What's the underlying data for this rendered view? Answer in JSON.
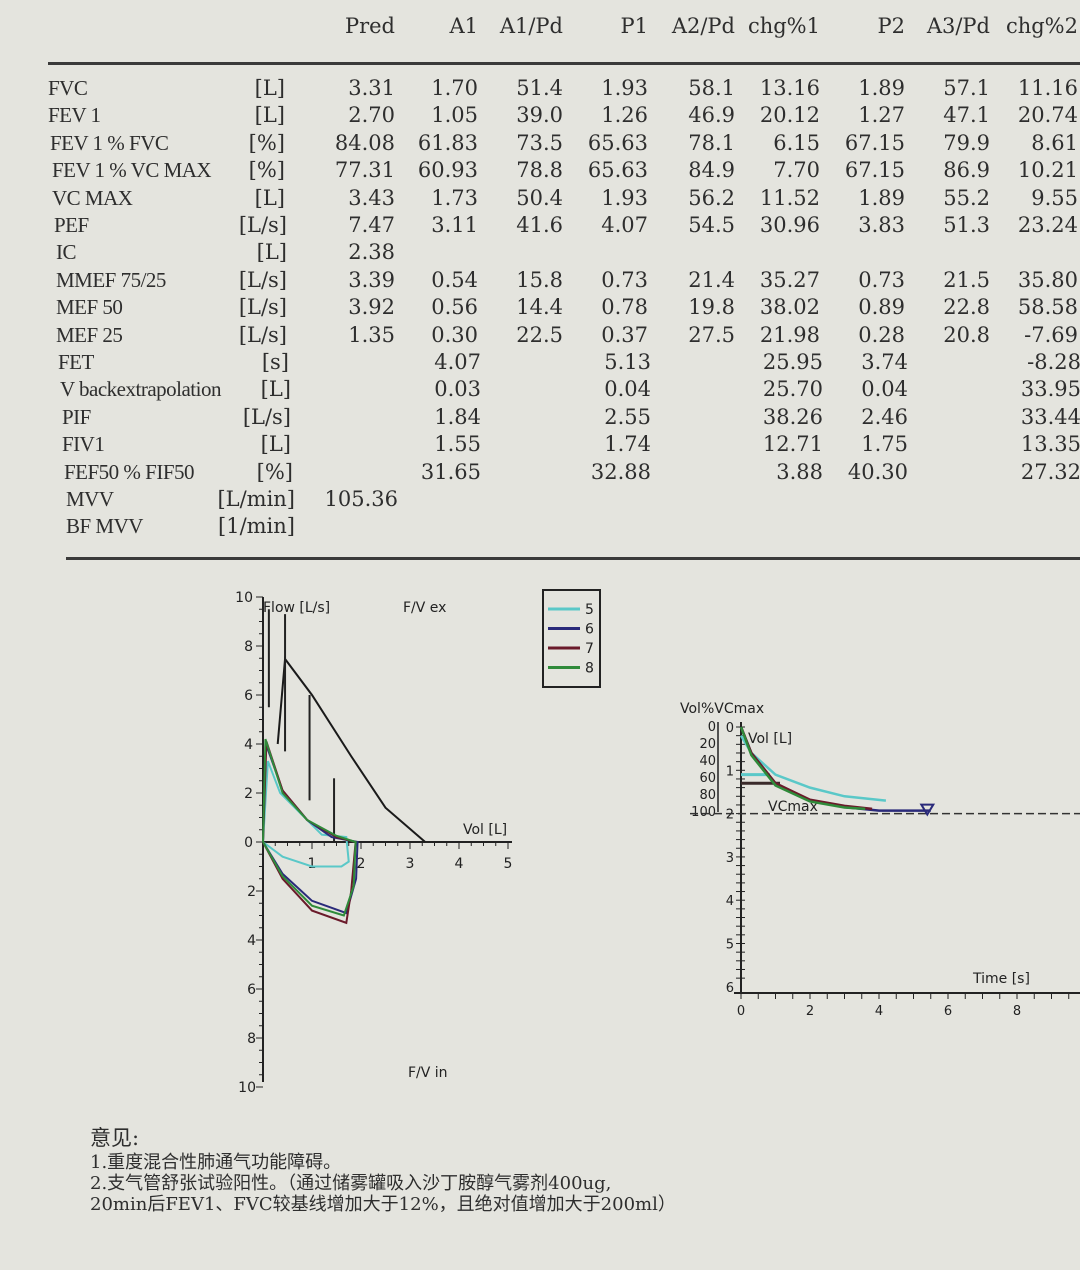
{
  "table": {
    "columns": [
      "Pred",
      "A1",
      "A1/Pd",
      "P1",
      "A2/Pd",
      "chg%1",
      "P2",
      "A3/Pd",
      "chg%2"
    ],
    "rows": [
      {
        "name": "FVC",
        "unit": "[L]",
        "values": [
          "3.31",
          "1.70",
          "51.4",
          "1.93",
          "58.1",
          "13.16",
          "1.89",
          "57.1",
          "11.16"
        ]
      },
      {
        "name": "FEV 1",
        "unit": "[L]",
        "values": [
          "2.70",
          "1.05",
          "39.0",
          "1.26",
          "46.9",
          "20.12",
          "1.27",
          "47.1",
          "20.74"
        ]
      },
      {
        "name": "FEV 1 % FVC",
        "unit": "[%]",
        "values": [
          "84.08",
          "61.83",
          "73.5",
          "65.63",
          "78.1",
          "6.15",
          "67.15",
          "79.9",
          "8.61"
        ]
      },
      {
        "name": "FEV 1 % VC MAX",
        "unit": "[%]",
        "values": [
          "77.31",
          "60.93",
          "78.8",
          "65.63",
          "84.9",
          "7.70",
          "67.15",
          "86.9",
          "10.21"
        ]
      },
      {
        "name": "VC MAX",
        "unit": "[L]",
        "values": [
          "3.43",
          "1.73",
          "50.4",
          "1.93",
          "56.2",
          "11.52",
          "1.89",
          "55.2",
          "9.55"
        ]
      },
      {
        "name": "PEF",
        "unit": "[L/s]",
        "values": [
          "7.47",
          "3.11",
          "41.6",
          "4.07",
          "54.5",
          "30.96",
          "3.83",
          "51.3",
          "23.24"
        ]
      },
      {
        "name": "IC",
        "unit": "[L]",
        "values": [
          "2.38",
          "",
          "",
          "",
          "",
          "",
          "",
          "",
          ""
        ]
      },
      {
        "name": "MMEF 75/25",
        "unit": "[L/s]",
        "values": [
          "3.39",
          "0.54",
          "15.8",
          "0.73",
          "21.4",
          "35.27",
          "0.73",
          "21.5",
          "35.80"
        ]
      },
      {
        "name": "MEF 50",
        "unit": "[L/s]",
        "values": [
          "3.92",
          "0.56",
          "14.4",
          "0.78",
          "19.8",
          "38.02",
          "0.89",
          "22.8",
          "58.58"
        ]
      },
      {
        "name": "MEF 25",
        "unit": "[L/s]",
        "values": [
          "1.35",
          "0.30",
          "22.5",
          "0.37",
          "27.5",
          "21.98",
          "0.28",
          "20.8",
          "-7.69"
        ]
      },
      {
        "name": "FET",
        "unit": "[s]",
        "values": [
          "",
          "4.07",
          "",
          "5.13",
          "",
          "25.95",
          "3.74",
          "",
          "-8.28"
        ]
      },
      {
        "name": "V backextrapolation",
        "unit": "[L]",
        "values": [
          "",
          "0.03",
          "",
          "0.04",
          "",
          "25.70",
          "0.04",
          "",
          "33.95"
        ]
      },
      {
        "name": "PIF",
        "unit": "[L/s]",
        "values": [
          "",
          "1.84",
          "",
          "2.55",
          "",
          "38.26",
          "2.46",
          "",
          "33.44"
        ]
      },
      {
        "name": "FIV1",
        "unit": "[L]",
        "values": [
          "",
          "1.55",
          "",
          "1.74",
          "",
          "12.71",
          "1.75",
          "",
          "13.35"
        ]
      },
      {
        "name": "FEF50 % FIF50",
        "unit": "[%]",
        "values": [
          "",
          "31.65",
          "",
          "32.88",
          "",
          "3.88",
          "40.30",
          "",
          "27.32"
        ]
      },
      {
        "name": "MVV",
        "unit": "[L/min]",
        "values": [
          "105.36",
          "",
          "",
          "",
          "",
          "",
          "",
          "",
          ""
        ]
      },
      {
        "name": "BF MVV",
        "unit": "[1/min]",
        "values": [
          "",
          "",
          "",
          "",
          "",
          "",
          "",
          "",
          ""
        ]
      }
    ]
  },
  "chart_data": [
    {
      "type": "line",
      "title": "F/V ex",
      "bottom_title": "F/V in",
      "xlabel": "Vol [L]",
      "ylabel": "Flow [L/s]",
      "xlim": [
        0,
        5
      ],
      "ylim": [
        -10,
        10
      ],
      "xticks": [
        "1",
        "2",
        "3",
        "4",
        "5"
      ],
      "yticks_up": [
        "0",
        "2",
        "4",
        "6",
        "8",
        "10"
      ],
      "yticks_down": [
        "2",
        "4",
        "6",
        "8",
        "10"
      ],
      "legend": [
        "5",
        "6",
        "7",
        "8"
      ],
      "legend_placement": "top-right",
      "colors": {
        "5": "#5ac8c8",
        "6": "#2a2a7a",
        "7": "#6a1a2a",
        "8": "#2f8a3a",
        "pred": "#1a1a1a"
      },
      "predicted": [
        [
          0.45,
          7.47
        ],
        [
          1.0,
          6.0
        ],
        [
          1.8,
          3.5
        ],
        [
          2.5,
          1.4
        ],
        [
          3.31,
          0
        ]
      ],
      "predicted_bars": [
        [
          0.12,
          5.5,
          9.5
        ],
        [
          0.45,
          3.7,
          9.3
        ],
        [
          0.95,
          1.7,
          6.0
        ],
        [
          1.45,
          0,
          2.6
        ]
      ],
      "series": [
        {
          "name": "5",
          "points": [
            [
              0,
              0
            ],
            [
              0.1,
              3.3
            ],
            [
              0.35,
              2.0
            ],
            [
              0.8,
              1.1
            ],
            [
              1.2,
              0.3
            ],
            [
              1.7,
              0.2
            ],
            [
              1.75,
              -0.8
            ],
            [
              1.6,
              -1.0
            ],
            [
              1.0,
              -1.0
            ],
            [
              0.4,
              -0.6
            ],
            [
              0,
              0
            ]
          ]
        },
        {
          "name": "6",
          "points": [
            [
              0,
              0
            ],
            [
              0.06,
              4.0
            ],
            [
              0.4,
              2.1
            ],
            [
              0.9,
              0.9
            ],
            [
              1.4,
              0.2
            ],
            [
              1.93,
              0
            ],
            [
              1.9,
              -1.5
            ],
            [
              1.7,
              -2.9
            ],
            [
              1.0,
              -2.4
            ],
            [
              0.4,
              -1.3
            ],
            [
              0,
              0
            ]
          ]
        },
        {
          "name": "7",
          "points": [
            [
              0,
              0
            ],
            [
              0.07,
              4.1
            ],
            [
              0.4,
              2.1
            ],
            [
              0.9,
              0.9
            ],
            [
              1.5,
              0.2
            ],
            [
              1.89,
              0
            ],
            [
              1.8,
              -2.0
            ],
            [
              1.7,
              -3.3
            ],
            [
              1.0,
              -2.8
            ],
            [
              0.4,
              -1.5
            ],
            [
              0,
              0
            ]
          ]
        },
        {
          "name": "8",
          "points": [
            [
              0,
              0
            ],
            [
              0.05,
              4.2
            ],
            [
              0.4,
              2.0
            ],
            [
              0.9,
              0.9
            ],
            [
              1.5,
              0.25
            ],
            [
              1.89,
              0
            ],
            [
              1.85,
              -1.8
            ],
            [
              1.65,
              -3.0
            ],
            [
              1.0,
              -2.6
            ],
            [
              0.4,
              -1.4
            ],
            [
              0,
              0
            ]
          ]
        }
      ]
    },
    {
      "type": "line",
      "xlabel": "Time [s]",
      "ylabel": "Vol [L]",
      "ylabel2": "Vol%VCmax",
      "annotation": "VCmax",
      "xlim": [
        0,
        10
      ],
      "ylim": [
        0,
        6
      ],
      "xticks": [
        "0",
        "2",
        "4",
        "6",
        "8"
      ],
      "yticks": [
        "0",
        "1",
        "2",
        "3",
        "4",
        "5",
        "6"
      ],
      "yticks2": [
        "0",
        "20",
        "40",
        "60",
        "80",
        "100"
      ],
      "series": [
        {
          "name": "5",
          "points": [
            [
              0,
              0.2
            ],
            [
              0.3,
              0.6
            ],
            [
              1,
              1.1
            ],
            [
              2,
              1.4
            ],
            [
              3,
              1.6
            ],
            [
              4.2,
              1.7
            ]
          ]
        },
        {
          "name": "6",
          "points": [
            [
              0,
              0
            ],
            [
              0.3,
              0.6
            ],
            [
              1,
              1.3
            ],
            [
              2,
              1.7
            ],
            [
              3,
              1.85
            ],
            [
              4,
              1.93
            ],
            [
              5.5,
              1.93
            ]
          ]
        },
        {
          "name": "7",
          "points": [
            [
              0,
              0
            ],
            [
              0.3,
              0.6
            ],
            [
              1,
              1.3
            ],
            [
              2,
              1.68
            ],
            [
              3,
              1.82
            ],
            [
              3.8,
              1.89
            ]
          ]
        },
        {
          "name": "8",
          "points": [
            [
              0,
              0
            ],
            [
              0.3,
              0.65
            ],
            [
              1,
              1.35
            ],
            [
              2,
              1.72
            ],
            [
              3,
              1.86
            ],
            [
              3.6,
              1.89
            ]
          ]
        }
      ]
    }
  ],
  "notes": {
    "title": "意见:",
    "lines": [
      "1.重度混合性肺通气功能障碍。",
      "2.支气管舒张试验阳性。（通过储雾罐吸入沙丁胺醇气雾剂400ug,",
      "20min后FEV1、FVC较基线增加大于12%，且绝对值增加大于200ml）"
    ]
  }
}
